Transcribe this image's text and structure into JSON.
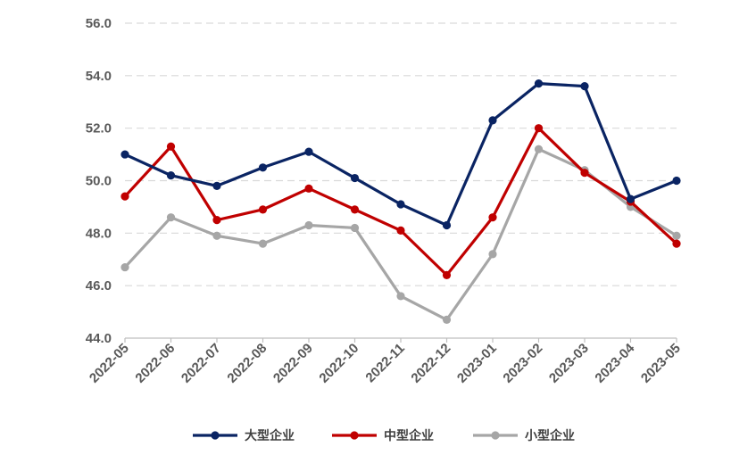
{
  "chart_data": {
    "type": "line",
    "title": "",
    "xlabel": "",
    "ylabel": "",
    "categories": [
      "2022-05",
      "2022-06",
      "2022-07",
      "2022-08",
      "2022-09",
      "2022-10",
      "2022-11",
      "2022-12",
      "2023-01",
      "2023-02",
      "2023-03",
      "2023-04",
      "2023-05"
    ],
    "ylim": [
      44.0,
      56.0
    ],
    "yticks": [
      "44.0",
      "46.0",
      "48.0",
      "50.0",
      "52.0",
      "54.0",
      "56.0"
    ],
    "grid": "horizontal dashed",
    "legend_position": "bottom",
    "series": [
      {
        "name": "大型企业",
        "color": "#0a2463",
        "values": [
          51.0,
          50.2,
          49.8,
          50.5,
          51.1,
          50.1,
          49.1,
          48.3,
          52.3,
          53.7,
          53.6,
          49.3,
          50.0
        ]
      },
      {
        "name": "中型企业",
        "color": "#c00000",
        "values": [
          49.4,
          51.3,
          48.5,
          48.9,
          49.7,
          48.9,
          48.1,
          46.4,
          48.6,
          52.0,
          50.3,
          49.2,
          47.6
        ]
      },
      {
        "name": "小型企业",
        "color": "#a6a6a6",
        "values": [
          46.7,
          48.6,
          47.9,
          47.6,
          48.3,
          48.2,
          45.6,
          44.7,
          47.2,
          51.2,
          50.4,
          49.0,
          47.9
        ]
      }
    ]
  }
}
